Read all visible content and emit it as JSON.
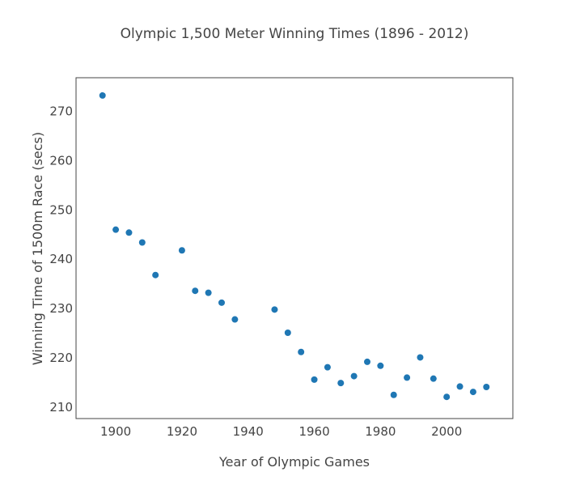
{
  "chart_data": {
    "type": "scatter",
    "title": "Olympic 1,500 Meter Winning Times (1896 - 2012)",
    "xlabel": "Year of Olympic Games",
    "ylabel": "Winning Time of 1500m Race (secs)",
    "xlim": [
      1888,
      2020
    ],
    "ylim": [
      207.7,
      276.8
    ],
    "xticks": [
      1900,
      1920,
      1940,
      1960,
      1980,
      2000
    ],
    "yticks": [
      210,
      220,
      230,
      240,
      250,
      260,
      270
    ],
    "grid": false,
    "marker_color": "#1f77b4",
    "points": [
      {
        "x": 1896,
        "y": 273.2
      },
      {
        "x": 1900,
        "y": 246.0
      },
      {
        "x": 1904,
        "y": 245.4
      },
      {
        "x": 1908,
        "y": 243.4
      },
      {
        "x": 1912,
        "y": 236.8
      },
      {
        "x": 1920,
        "y": 241.8
      },
      {
        "x": 1924,
        "y": 233.6
      },
      {
        "x": 1928,
        "y": 233.2
      },
      {
        "x": 1932,
        "y": 231.2
      },
      {
        "x": 1936,
        "y": 227.8
      },
      {
        "x": 1948,
        "y": 229.8
      },
      {
        "x": 1952,
        "y": 225.1
      },
      {
        "x": 1956,
        "y": 221.2
      },
      {
        "x": 1960,
        "y": 215.6
      },
      {
        "x": 1964,
        "y": 218.1
      },
      {
        "x": 1968,
        "y": 214.9
      },
      {
        "x": 1972,
        "y": 216.3
      },
      {
        "x": 1976,
        "y": 219.2
      },
      {
        "x": 1980,
        "y": 218.4
      },
      {
        "x": 1984,
        "y": 212.5
      },
      {
        "x": 1988,
        "y": 216.0
      },
      {
        "x": 1992,
        "y": 220.1
      },
      {
        "x": 1996,
        "y": 215.8
      },
      {
        "x": 2000,
        "y": 212.1
      },
      {
        "x": 2004,
        "y": 214.2
      },
      {
        "x": 2008,
        "y": 213.1
      },
      {
        "x": 2012,
        "y": 214.1
      }
    ]
  }
}
